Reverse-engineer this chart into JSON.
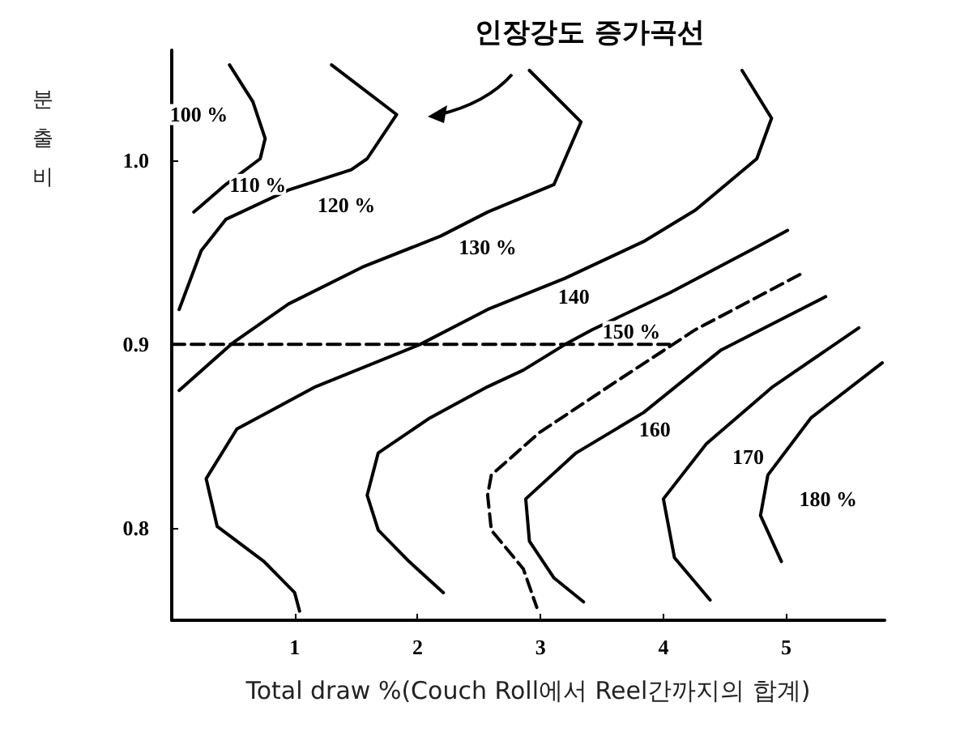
{
  "chart_data": {
    "type": "line",
    "title": "인장강도 증가곡선",
    "xlabel": "Total draw %(Couch Roll에서 Reel간까지의 합계)",
    "ylabel": "분출비",
    "xlim": [
      0,
      5.8
    ],
    "xticks": [
      1,
      2,
      3,
      4,
      5
    ],
    "ylim": [
      0.75,
      1.06
    ],
    "yticks": [
      0.8,
      0.9,
      {
        "value": 1,
        "label": "1.0"
      }
    ],
    "marker": "none",
    "line_style": "solid",
    "series": [
      {
        "color": "#000000",
        "x": [
          0.47,
          0.66,
          0.76,
          0.72,
          0.44,
          0.18
        ],
        "values": [
          1.052,
          1.032,
          1.012,
          1.001,
          0.987,
          0.972
        ]
      },
      {
        "color": "#000000",
        "x": [
          1.3,
          1.83,
          1.59,
          1.46,
          0.95,
          0.44,
          0.24,
          0.06
        ],
        "values": [
          1.052,
          1.025,
          1.001,
          0.995,
          0.984,
          0.968,
          0.951,
          0.919
        ]
      },
      {
        "color": "#000000",
        "x": [
          2.91,
          3.33,
          3.11,
          2.57,
          2.19,
          1.55,
          0.95,
          0.5,
          0.06
        ],
        "values": [
          1.049,
          1.021,
          0.987,
          0.972,
          0.959,
          0.942,
          0.922,
          0.901,
          0.875
        ]
      },
      {
        "color": "#000000",
        "x": [
          4.64,
          4.88,
          4.76,
          4.26,
          3.84,
          3.2,
          2.57,
          2.02,
          1.17,
          0.53,
          0.28,
          0.37,
          0.75,
          1.0,
          1.04
        ],
        "values": [
          1.049,
          1.023,
          1.001,
          0.973,
          0.956,
          0.936,
          0.919,
          0.9,
          0.877,
          0.854,
          0.827,
          0.801,
          0.782,
          0.765,
          0.755
        ]
      },
      {
        "color": "#000000",
        "x": [
          5.01,
          4.76,
          4.05,
          3.42,
          3.2,
          2.86,
          2.57,
          2.1,
          1.68,
          1.59,
          1.68,
          1.93,
          2.21
        ],
        "values": [
          0.962,
          0.953,
          0.928,
          0.908,
          0.9,
          0.886,
          0.877,
          0.86,
          0.841,
          0.818,
          0.799,
          0.782,
          0.765
        ]
      },
      {
        "color": "#000000",
        "line_style": "dashed",
        "x": [
          5.11,
          4.26,
          3.62,
          2.99,
          2.6,
          2.57,
          2.6,
          2.86,
          2.97
        ],
        "values": [
          0.938,
          0.908,
          0.88,
          0.852,
          0.829,
          0.818,
          0.799,
          0.778,
          0.757
        ]
      },
      {
        "color": "#000000",
        "x": [
          5.32,
          4.47,
          3.84,
          3.29,
          2.88,
          2.91,
          3.11,
          3.35
        ],
        "values": [
          0.926,
          0.897,
          0.863,
          0.841,
          0.816,
          0.793,
          0.773,
          0.76
        ]
      },
      {
        "color": "#000000",
        "x": [
          5.59,
          4.89,
          4.35,
          4.0,
          4.09,
          4.38
        ],
        "values": [
          0.909,
          0.877,
          0.846,
          0.816,
          0.784,
          0.761
        ]
      },
      {
        "color": "#000000",
        "x": [
          5.78,
          5.2,
          4.85,
          4.79,
          4.96
        ],
        "values": [
          0.89,
          0.86,
          0.829,
          0.807,
          0.782
        ]
      },
      {
        "color": "#000000",
        "line_style": "dashed",
        "x": [
          0,
          4.05
        ],
        "values": [
          0.9,
          0.9
        ]
      }
    ],
    "annotations": [
      {
        "text": "100 %",
        "x": 0.22,
        "y": 1.025
      },
      {
        "text": "110 %",
        "x": 0.7,
        "y": 0.987
      },
      {
        "text": "120 %",
        "x": 1.42,
        "y": 0.976
      },
      {
        "text": "130 %",
        "x": 2.57,
        "y": 0.953
      },
      {
        "text": "140",
        "x": 3.27,
        "y": 0.926
      },
      {
        "text": "150 %",
        "x": 3.74,
        "y": 0.907
      },
      {
        "text": "160",
        "x": 3.93,
        "y": 0.854
      },
      {
        "text": "170",
        "x": 4.69,
        "y": 0.839
      },
      {
        "text": "180 %",
        "x": 5.34,
        "y": 0.816
      }
    ]
  }
}
